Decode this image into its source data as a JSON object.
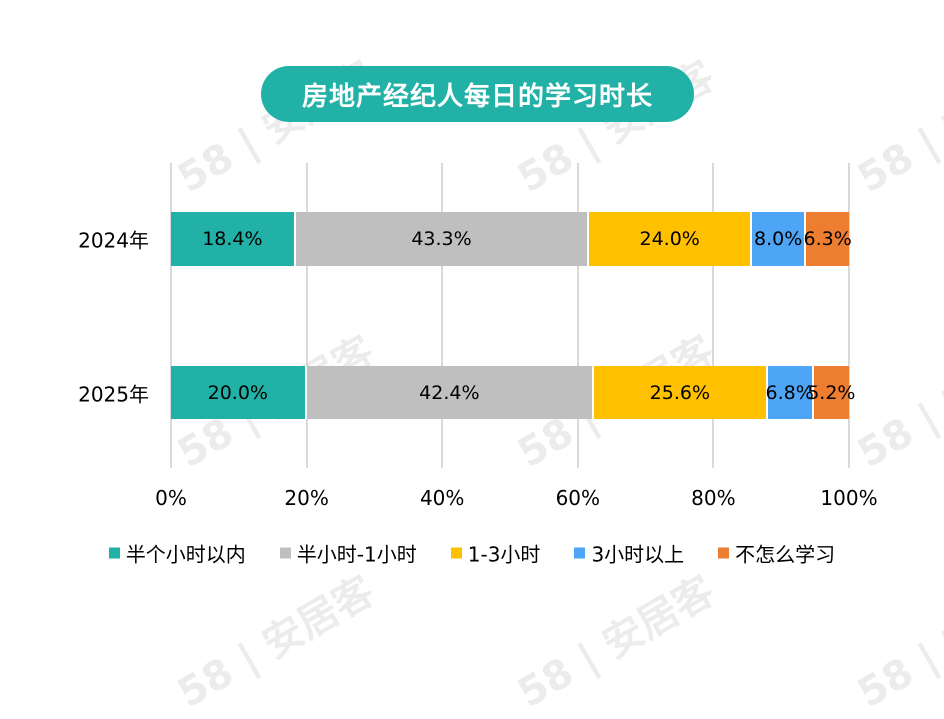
{
  "title": "房地产经纪人每日的学习时长",
  "watermark": "58 | 安居客",
  "chart_data": {
    "type": "bar",
    "orientation": "horizontal",
    "stacked": true,
    "percent_stacked": true,
    "title": "房地产经纪人每日的学习时长",
    "categories": [
      "2024年",
      "2025年"
    ],
    "series": [
      {
        "name": "半个小时以内",
        "color": "#22b1a6",
        "values": [
          18.4,
          20.0
        ],
        "labels": [
          "18.4%",
          "20.0%"
        ]
      },
      {
        "name": "半小时-1小时",
        "color": "#bfbfbf",
        "values": [
          43.3,
          42.4
        ],
        "labels": [
          "43.3%",
          "42.4%"
        ]
      },
      {
        "name": "1-3小时",
        "color": "#ffc000",
        "values": [
          24.0,
          25.6
        ],
        "labels": [
          "24.0%",
          "25.6%"
        ]
      },
      {
        "name": "3小时以上",
        "color": "#4ea5f5",
        "values": [
          8.0,
          6.8
        ],
        "labels": [
          "8.0%",
          "6.8%"
        ]
      },
      {
        "name": "不怎么学习",
        "color": "#ed7d31",
        "values": [
          6.3,
          5.2
        ],
        "labels": [
          "6.3%",
          "5.2%"
        ]
      }
    ],
    "xlabel": "",
    "ylabel": "",
    "xlim": [
      0,
      100
    ],
    "x_ticks": [
      "0%",
      "20%",
      "40%",
      "60%",
      "80%",
      "100%"
    ],
    "grid": true,
    "legend_position": "bottom"
  }
}
